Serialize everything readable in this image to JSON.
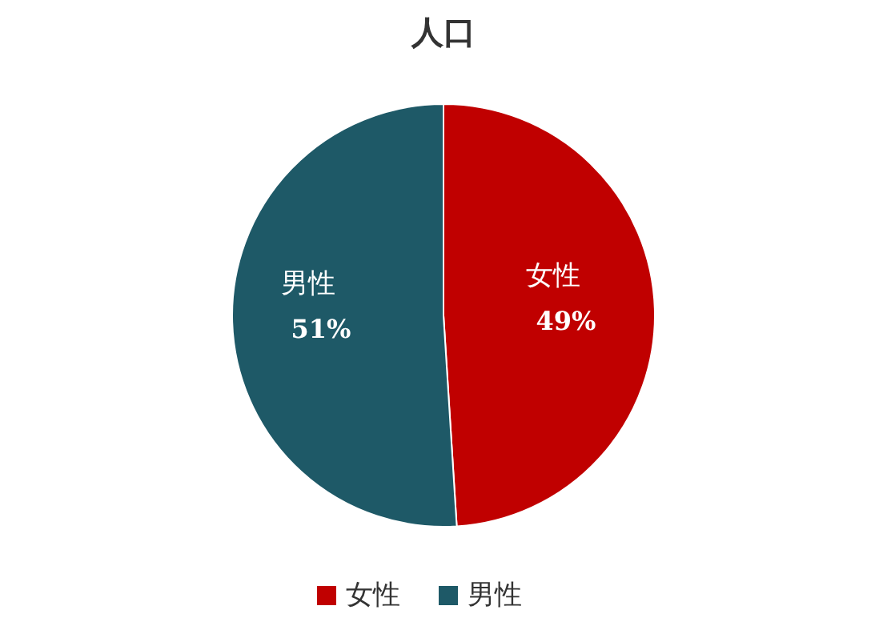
{
  "chart_data": {
    "type": "pie",
    "title": "人口",
    "categories": [
      "女性",
      "男性"
    ],
    "values": [
      49,
      51
    ],
    "value_labels": [
      "49%",
      "51%"
    ],
    "colors": [
      "#c00000",
      "#1e5967"
    ],
    "legend": "bottom"
  }
}
